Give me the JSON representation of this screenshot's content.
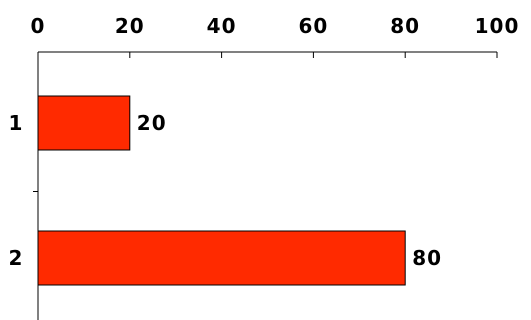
{
  "chart_data": {
    "type": "bar",
    "orientation": "horizontal",
    "categories": [
      "1",
      "2"
    ],
    "values": [
      20,
      80
    ],
    "data_labels": [
      "20",
      "80"
    ],
    "title": "",
    "xlabel": "",
    "ylabel": "",
    "xlim": [
      0,
      100
    ],
    "x_ticks": [
      0,
      20,
      40,
      60,
      80,
      100
    ],
    "x_tick_labels": [
      "0",
      "20",
      "40",
      "60",
      "80",
      "100"
    ],
    "x_axis_position": "top",
    "grid": false,
    "legend": "none",
    "bar_color": "#ff2a00",
    "bar_edge_color": "#000000"
  }
}
